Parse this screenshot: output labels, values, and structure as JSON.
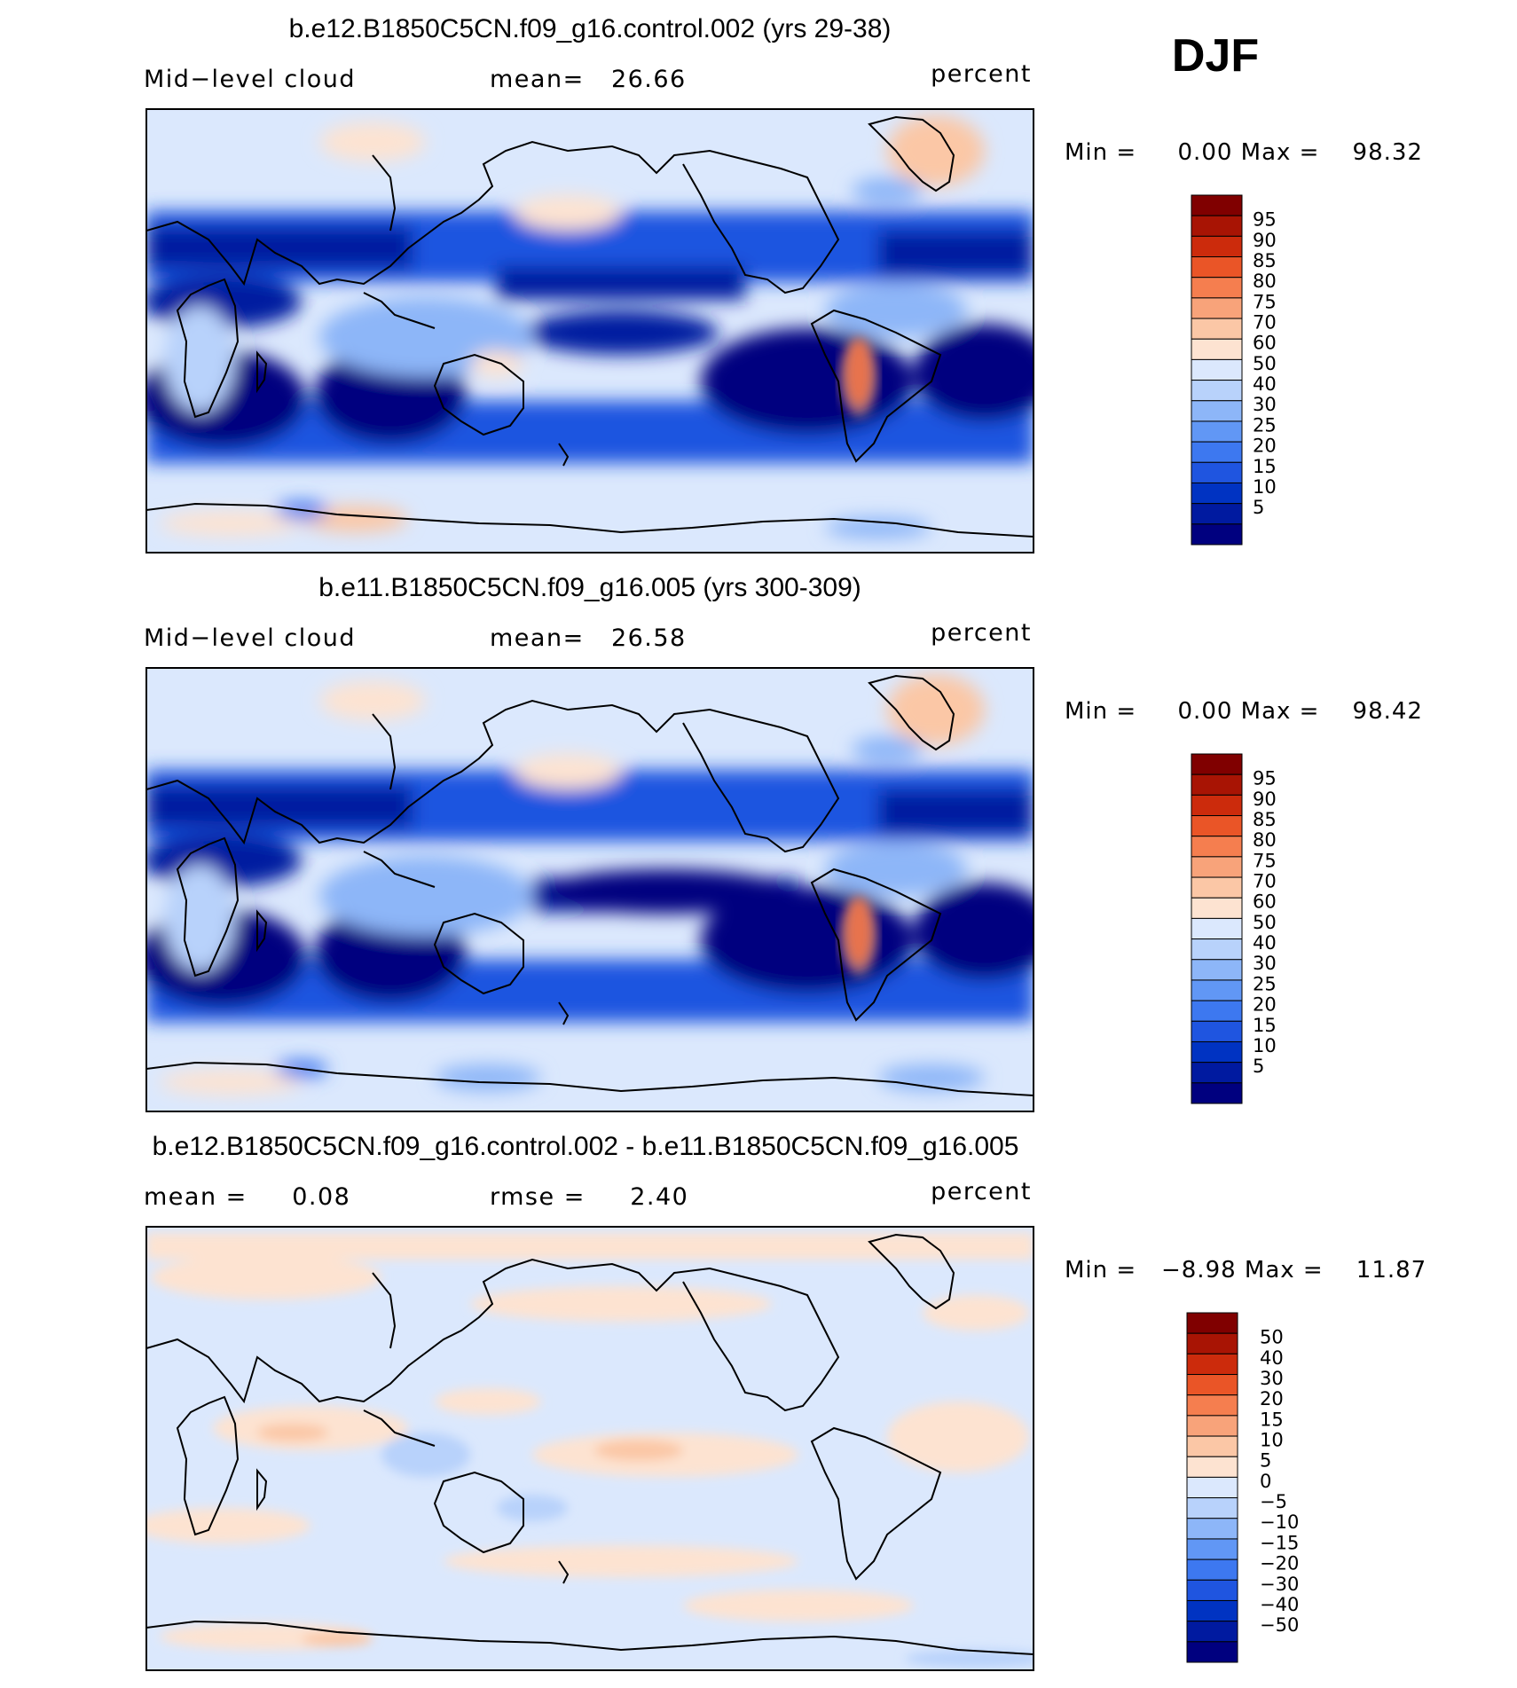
{
  "season": "DJF",
  "colors": {
    "land_outline": "#000000",
    "main_bar": [
      "#00007f",
      "#001aa0",
      "#0033c2",
      "#1f55e0",
      "#3d78f0",
      "#6197f5",
      "#8db6f8",
      "#b8d2fb",
      "#dbe8fd",
      "#fde3d1",
      "#fbc7a6",
      "#f8a37a",
      "#f57e4f",
      "#ea5527",
      "#cc2b0c",
      "#a81404",
      "#800000"
    ],
    "diff_bar": [
      "#00007f",
      "#001aa0",
      "#0033c2",
      "#1f55e0",
      "#3d78f0",
      "#6197f5",
      "#8db6f8",
      "#b8d2fb",
      "#dbe8fd",
      "#fde3d1",
      "#fbc7a6",
      "#f8a37a",
      "#f57e4f",
      "#ea5527",
      "#cc2b0c",
      "#a81404",
      "#800000"
    ]
  },
  "panels": [
    {
      "title": "b.e12.B1850C5CN.f09_g16.control.002 (yrs 29-38)",
      "left_label": "Mid−level cloud",
      "center_label": "mean=   26.66",
      "right_label": "percent",
      "stats": "Min =     0.00 Max =    98.32",
      "colorbar_labels": [
        "95",
        "90",
        "85",
        "80",
        "75",
        "70",
        "60",
        "50",
        "40",
        "30",
        "25",
        "20",
        "15",
        "10",
        "5"
      ],
      "map_type": "field"
    },
    {
      "title": "b.e11.B1850C5CN.f09_g16.005 (yrs 300-309)",
      "left_label": "Mid−level cloud",
      "center_label": "mean=   26.58",
      "right_label": "percent",
      "stats": "Min =     0.00 Max =    98.42",
      "colorbar_labels": [
        "95",
        "90",
        "85",
        "80",
        "75",
        "70",
        "60",
        "50",
        "40",
        "30",
        "25",
        "20",
        "15",
        "10",
        "5"
      ],
      "map_type": "field"
    },
    {
      "title": "b.e12.B1850C5CN.f09_g16.control.002 - b.e11.B1850C5CN.f09_g16.005",
      "left_label": "mean =     0.08",
      "center_label": "rmse =     2.40",
      "right_label": "percent",
      "stats": "Min =   −8.98 Max =    11.87",
      "colorbar_labels": [
        "50",
        "40",
        "30",
        "20",
        "15",
        "10",
        "5",
        "0",
        "−5",
        "−10",
        "−15",
        "−20",
        "−30",
        "−40",
        "−50"
      ],
      "map_type": "diff"
    }
  ]
}
